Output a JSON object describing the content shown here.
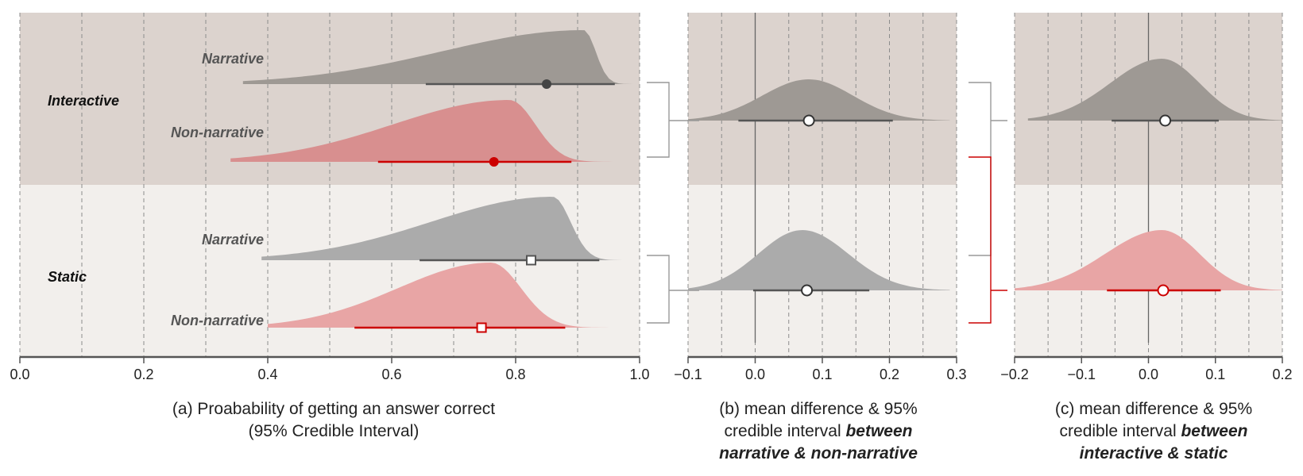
{
  "chart_data": [
    {
      "panel": "a",
      "type": "density",
      "caption_line1": "(a) Proabability of getting an answer correct",
      "caption_line2": "(95% Credible Interval)",
      "xlim": [
        0.0,
        1.0
      ],
      "xticks": [
        "0.0",
        "0.2",
        "0.4",
        "0.6",
        "0.8",
        "1.0"
      ],
      "groups": [
        "Interactive",
        "Static"
      ],
      "series": [
        {
          "group": "Interactive",
          "label": "Narrative",
          "mean": 0.85,
          "ci": [
            0.655,
            0.96
          ],
          "mode": 0.91,
          "min": 0.36,
          "max": 0.99,
          "color": "#9e9994",
          "line_color": "#555555",
          "marker": "dot-filled"
        },
        {
          "group": "Interactive",
          "label": "Non-narrative",
          "mean": 0.765,
          "ci": [
            0.578,
            0.89
          ],
          "mode": 0.79,
          "min": 0.34,
          "max": 0.965,
          "color": "#d88f8f",
          "line_color": "#cc0000",
          "marker": "dot-filled"
        },
        {
          "group": "Static",
          "label": "Narrative",
          "mean": 0.825,
          "ci": [
            0.645,
            0.935
          ],
          "mode": 0.86,
          "min": 0.39,
          "max": 0.98,
          "color": "#ababab",
          "line_color": "#555555",
          "marker": "square-open"
        },
        {
          "group": "Static",
          "label": "Non-narrative",
          "mean": 0.745,
          "ci": [
            0.54,
            0.88
          ],
          "mode": 0.76,
          "min": 0.4,
          "max": 0.965,
          "color": "#e8a5a5",
          "line_color": "#cc0000",
          "marker": "square-open"
        }
      ]
    },
    {
      "panel": "b",
      "type": "density",
      "caption_line1": "(b) mean difference & 95%",
      "caption_line2_plain": "credible interval ",
      "caption_line2_bold": "between",
      "caption_line3_bold": "narrative & non-narrative",
      "xlim": [
        -0.1,
        0.3
      ],
      "xticks": [
        "−0.1",
        "0.0",
        "0.1",
        "0.2",
        "0.3"
      ],
      "series": [
        {
          "group": "Interactive",
          "mean": 0.08,
          "ci": [
            -0.025,
            0.205
          ],
          "mode": 0.08,
          "min": -0.1,
          "max": 0.29,
          "color": "#9e9994",
          "line_color": "#555555"
        },
        {
          "group": "Static",
          "mean": 0.077,
          "ci": [
            -0.003,
            0.17
          ],
          "mode": 0.07,
          "min": -0.1,
          "max": 0.29,
          "color": "#ababab",
          "line_color": "#555555"
        }
      ]
    },
    {
      "panel": "c",
      "type": "density",
      "caption_line1": "(c) mean difference & 95%",
      "caption_line2_plain": "credible interval ",
      "caption_line2_bold": "between",
      "caption_line3_bold": "interactive & static",
      "xlim": [
        -0.2,
        0.2
      ],
      "xticks": [
        "−0.2",
        "−0.1",
        "0.0",
        "0.1",
        "0.2"
      ],
      "series": [
        {
          "group": "Narrative",
          "mean": 0.025,
          "ci": [
            -0.055,
            0.105
          ],
          "mode": 0.02,
          "min": -0.18,
          "max": 0.2,
          "color": "#9e9994",
          "line_color": "#555555"
        },
        {
          "group": "Non-narrative",
          "mean": 0.022,
          "ci": [
            -0.062,
            0.108
          ],
          "mode": 0.02,
          "min": -0.2,
          "max": 0.2,
          "color": "#e8a5a5",
          "line_color": "#cc0000"
        }
      ]
    }
  ],
  "colors": {
    "band_top": "#dcd3ce",
    "band_bottom": "#f2efec",
    "grid": "#8c8c8c",
    "axis": "#555555",
    "bracket_gray": "#999999",
    "bracket_red": "#cc0000"
  }
}
